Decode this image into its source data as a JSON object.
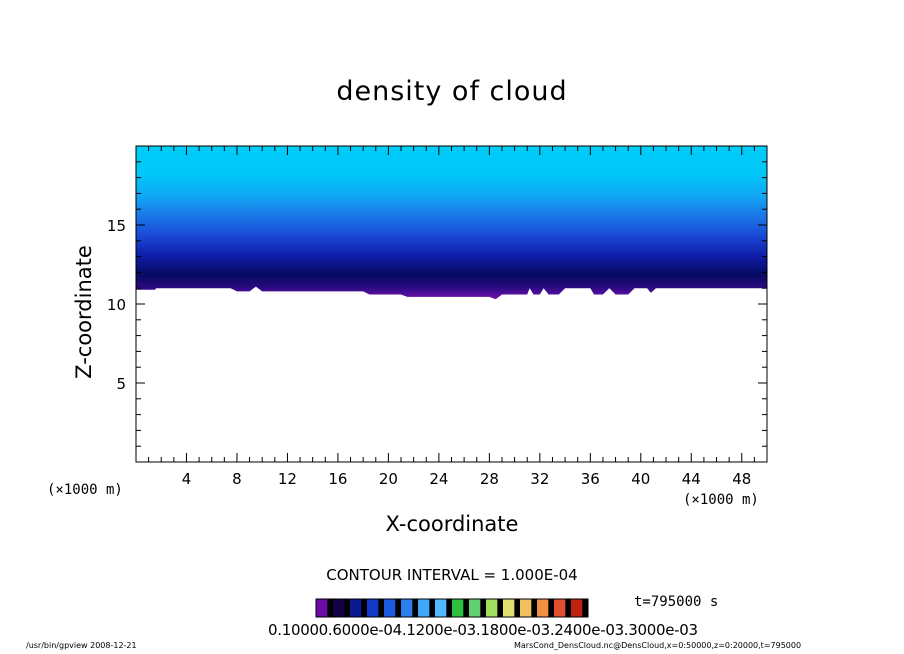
{
  "chart_data": {
    "type": "heatmap",
    "title": "density of cloud",
    "xlabel": "X-coordinate",
    "ylabel": "Z-coordinate",
    "x_unit": "(×1000 m)",
    "y_unit": "(×1000 m)",
    "xlim": [
      0,
      50
    ],
    "ylim": [
      0,
      20
    ],
    "x_ticks": [
      4,
      8,
      12,
      16,
      20,
      24,
      28,
      32,
      36,
      40,
      44,
      48
    ],
    "y_ticks": [
      5,
      10,
      15
    ],
    "cloud_base_km": [
      [
        0,
        10.9
      ],
      [
        1.5,
        10.9
      ],
      [
        1.6,
        11.0
      ],
      [
        7.5,
        11.0
      ],
      [
        8,
        10.8
      ],
      [
        9,
        10.8
      ],
      [
        9.5,
        11.1
      ],
      [
        10,
        10.8
      ],
      [
        14,
        10.8
      ],
      [
        18,
        10.8
      ],
      [
        18.5,
        10.6
      ],
      [
        21,
        10.6
      ],
      [
        21.5,
        10.45
      ],
      [
        28,
        10.45
      ],
      [
        28.5,
        10.3
      ],
      [
        29,
        10.6
      ],
      [
        31,
        10.6
      ],
      [
        31.2,
        11.0
      ],
      [
        31.5,
        10.6
      ],
      [
        32,
        10.6
      ],
      [
        32.3,
        11.0
      ],
      [
        32.7,
        10.6
      ],
      [
        33.5,
        10.6
      ],
      [
        34,
        11.0
      ],
      [
        36,
        11.0
      ],
      [
        36.3,
        10.6
      ],
      [
        37,
        10.6
      ],
      [
        37.5,
        11.0
      ],
      [
        38,
        10.6
      ],
      [
        39,
        10.6
      ],
      [
        39.5,
        11.0
      ],
      [
        40.5,
        11.0
      ],
      [
        40.8,
        10.7
      ],
      [
        41.2,
        11.0
      ],
      [
        50,
        11.0
      ]
    ],
    "cloud_top_km": 20,
    "colorbar": {
      "tick_labels": "0.10000.6000e-04.1200e-03.1800e-03.2400e-03.3000e-03",
      "colors": [
        "#6a0aa8",
        "#120048",
        "#0a1a90",
        "#1438c8",
        "#1e5ae0",
        "#2a80f0",
        "#40a8f8",
        "#52b8ff",
        "#30c040",
        "#60d070",
        "#a0e060",
        "#e0e070",
        "#f0c060",
        "#f09040",
        "#e05030",
        "#c02010"
      ]
    },
    "contour_interval": "CONTOUR INTERVAL = 1.000E-04",
    "time_label": "t=795000 s"
  },
  "footer": {
    "left": "/usr/bin/gpview   2008-12-21",
    "right": "MarsCond_DensCloud.nc@DensCloud,x=0:50000,z=0:20000,t=795000"
  }
}
